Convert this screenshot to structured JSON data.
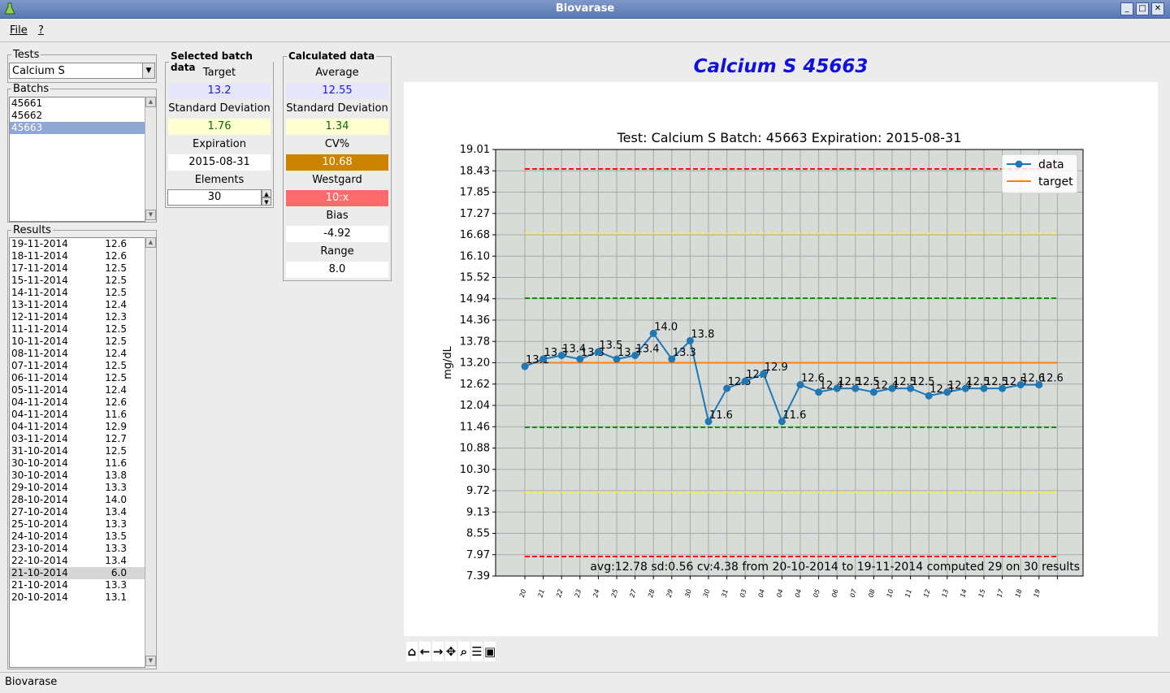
{
  "window": {
    "title": "Biovarase"
  },
  "menu": {
    "file": "File",
    "help": "?"
  },
  "tests": {
    "legend": "Tests",
    "selected": "Calcium S"
  },
  "batchs": {
    "legend": "Batchs",
    "items": [
      "45661",
      "45662",
      "45663"
    ],
    "selected_index": 2
  },
  "results": {
    "legend": "Results",
    "items": [
      {
        "date": "19-11-2014",
        "value": "12.6"
      },
      {
        "date": "18-11-2014",
        "value": "12.6"
      },
      {
        "date": "17-11-2014",
        "value": "12.5"
      },
      {
        "date": "15-11-2014",
        "value": "12.5"
      },
      {
        "date": "14-11-2014",
        "value": "12.5"
      },
      {
        "date": "13-11-2014",
        "value": "12.4"
      },
      {
        "date": "12-11-2014",
        "value": "12.3"
      },
      {
        "date": "11-11-2014",
        "value": "12.5"
      },
      {
        "date": "10-11-2014",
        "value": "12.5"
      },
      {
        "date": "08-11-2014",
        "value": "12.4"
      },
      {
        "date": "07-11-2014",
        "value": "12.5"
      },
      {
        "date": "06-11-2014",
        "value": "12.5"
      },
      {
        "date": "05-11-2014",
        "value": "12.4"
      },
      {
        "date": "04-11-2014",
        "value": "12.6"
      },
      {
        "date": "04-11-2014",
        "value": "11.6"
      },
      {
        "date": "04-11-2014",
        "value": "12.9"
      },
      {
        "date": "03-11-2014",
        "value": "12.7"
      },
      {
        "date": "31-10-2014",
        "value": "12.5"
      },
      {
        "date": "30-10-2014",
        "value": "11.6"
      },
      {
        "date": "30-10-2014",
        "value": "13.8"
      },
      {
        "date": "29-10-2014",
        "value": "13.3"
      },
      {
        "date": "28-10-2014",
        "value": "14.0"
      },
      {
        "date": "27-10-2014",
        "value": "13.4"
      },
      {
        "date": "25-10-2014",
        "value": "13.3"
      },
      {
        "date": "24-10-2014",
        "value": "13.5"
      },
      {
        "date": "23-10-2014",
        "value": "13.3"
      },
      {
        "date": "22-10-2014",
        "value": "13.4"
      },
      {
        "date": "21-10-2014",
        "value": "6.0"
      },
      {
        "date": "21-10-2014",
        "value": "13.3"
      },
      {
        "date": "20-10-2014",
        "value": "13.1"
      }
    ],
    "highlighted_index": 27
  },
  "selected_batch": {
    "legend": "Selected batch data",
    "target_label": "Target",
    "target": "13.2",
    "sd_label": "Standard Deviation",
    "sd": "1.76",
    "expiration_label": "Expiration",
    "expiration": "2015-08-31",
    "elements_label": "Elements",
    "elements": "30"
  },
  "calculated": {
    "legend": "Calculated data",
    "average_label": "Average",
    "average": "12.55",
    "sd_label": "Standard Deviation",
    "sd": "1.34",
    "cv_label": "CV%",
    "cv": "10.68",
    "westgard_label": "Westgard",
    "westgard": "10:x",
    "bias_label": "Bias",
    "bias": "-4.92",
    "range_label": "Range",
    "range": "8.0"
  },
  "colors": {
    "cv_bg": "#cc8400",
    "westgard_bg": "#ff6b6b",
    "target_bg": "#e6e6fa",
    "sd_bg": "#ffffd0"
  },
  "plot": {
    "heading": "Calcium S 45663"
  },
  "toolbar_icons": [
    "home-icon",
    "back-icon",
    "forward-icon",
    "pan-icon",
    "zoom-icon",
    "subplots-icon",
    "save-icon"
  ],
  "status": {
    "text": "Biovarase"
  },
  "chart_data": {
    "type": "line",
    "title": "Test: Calcium S Batch: 45663 Expiration: 2015-08-31",
    "ylabel": "mg/dL",
    "xlabel": "",
    "x": [
      "20",
      "21",
      "22",
      "23",
      "24",
      "25",
      "27",
      "28",
      "29",
      "30",
      "30",
      "31",
      "03",
      "04",
      "04",
      "04",
      "05",
      "06",
      "07",
      "08",
      "10",
      "11",
      "12",
      "13",
      "14",
      "15",
      "17",
      "18",
      "19"
    ],
    "series": [
      {
        "name": "data",
        "values": [
          13.1,
          13.3,
          13.4,
          13.3,
          13.5,
          13.3,
          13.4,
          14.0,
          13.3,
          13.8,
          11.6,
          12.5,
          12.7,
          12.9,
          11.6,
          12.6,
          12.4,
          12.5,
          12.5,
          12.4,
          12.5,
          12.5,
          12.3,
          12.4,
          12.5,
          12.5,
          12.5,
          12.6,
          12.6
        ]
      },
      {
        "name": "target",
        "value": 13.2
      }
    ],
    "data_labels": [
      "13.1",
      "13.3",
      "13.4",
      "13.3",
      "13.5",
      "13.3",
      "13.4",
      "14.0",
      "13.3",
      "13.8",
      "11.6",
      "12.5",
      "12.7",
      "12.9",
      "11.6",
      "12.6",
      "12.4",
      "12.5",
      "12.5",
      "12.4",
      "12.5",
      "12.5",
      "12.3",
      "12.4",
      "12.5",
      "12.5",
      "12.5",
      "12.6",
      "12.6"
    ],
    "reference_lines": [
      {
        "value": 18.48,
        "color": "#ff0000"
      },
      {
        "value": 16.72,
        "color": "#ffff00"
      },
      {
        "value": 14.96,
        "color": "#008000"
      },
      {
        "value": 11.44,
        "color": "#008000"
      },
      {
        "value": 9.68,
        "color": "#ffff00"
      },
      {
        "value": 7.92,
        "color": "#ff0000"
      }
    ],
    "yticks": [
      "19.01",
      "18.43",
      "17.85",
      "17.27",
      "16.68",
      "16.10",
      "15.52",
      "14.94",
      "14.36",
      "13.78",
      "13.20",
      "12.62",
      "12.04",
      "11.46",
      "10.88",
      "10.30",
      "9.72",
      "9.13",
      "8.55",
      "7.97",
      "7.39"
    ],
    "ylim": [
      7.39,
      19.01
    ],
    "annotation": "avg:12.78 sd:0.56 cv:4.38 from 20-10-2014 to 19-11-2014 computed 29 on 30 results",
    "legend": [
      "data",
      "target"
    ],
    "legend_position": "top-right",
    "grid": true,
    "colors": {
      "data": "#1f77b4",
      "target": "#ff7f0e",
      "plot_bg": "#d8dcd8",
      "grid": "#a8a8a8"
    }
  }
}
